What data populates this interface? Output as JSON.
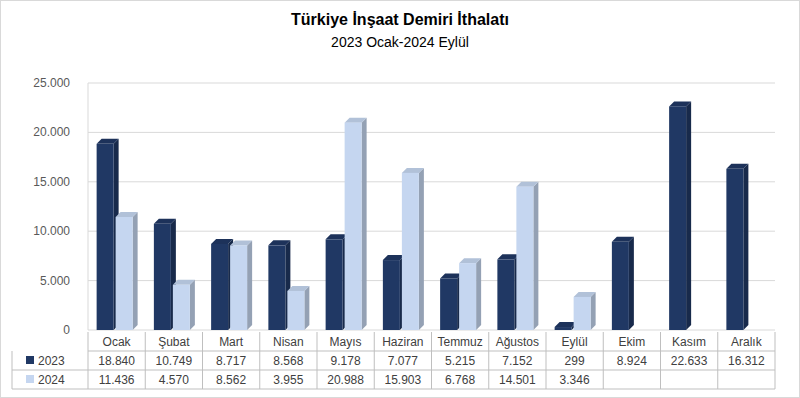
{
  "chart_data": {
    "type": "bar",
    "title": "Türkiye İnşaat Demiri İthalatı",
    "subtitle": "2023 Ocak-2024 Eylül",
    "categories": [
      "Ocak",
      "Şubat",
      "Mart",
      "Nisan",
      "Mayıs",
      "Haziran",
      "Temmuz",
      "Ağustos",
      "Eylül",
      "Ekim",
      "Kasım",
      "Aralık"
    ],
    "series": [
      {
        "name": "2023",
        "color": "#203864",
        "values": [
          18840,
          10749,
          8717,
          8568,
          9178,
          7077,
          5215,
          7152,
          299,
          8924,
          22633,
          16312
        ],
        "value_labels": [
          "18.840",
          "10.749",
          "8.717",
          "8.568",
          "9.178",
          "7.077",
          "5.215",
          "7.152",
          "299",
          "8.924",
          "22.633",
          "16.312"
        ]
      },
      {
        "name": "2024",
        "color": "#c5d6f0",
        "values": [
          11436,
          4570,
          8562,
          3955,
          20988,
          15903,
          6768,
          14501,
          3346,
          null,
          null,
          null
        ],
        "value_labels": [
          "11.436",
          "4.570",
          "8.562",
          "3.955",
          "20.988",
          "15.903",
          "6.768",
          "14.501",
          "3.346",
          null,
          null,
          null
        ]
      }
    ],
    "ylim": [
      0,
      25000
    ],
    "yticks": [
      0,
      {
        "value": 5000,
        "label": "5.000"
      },
      {
        "value": 10000,
        "label": "10.000"
      },
      {
        "value": 15000,
        "label": "15.000"
      },
      {
        "value": 20000,
        "label": "20.000"
      },
      {
        "value": 25000,
        "label": "25.000"
      }
    ],
    "grid": true
  }
}
